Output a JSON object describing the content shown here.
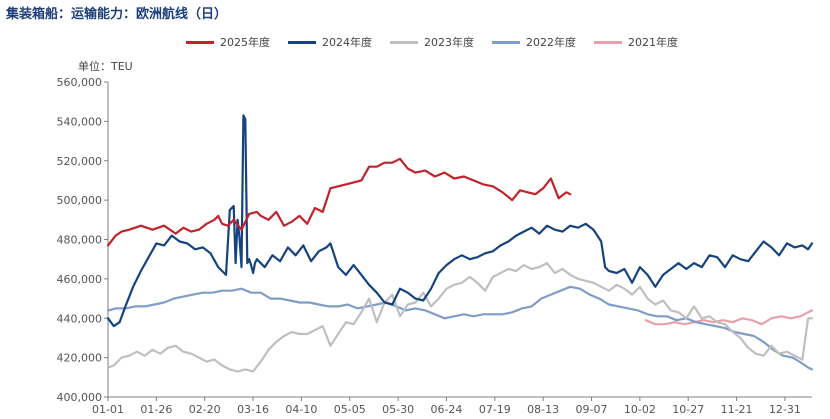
{
  "title": "集装箱船：运输能力：欧洲航线（日）",
  "unit_label": "单位：TEU",
  "chart_data": {
    "type": "line",
    "title": "集装箱船：运输能力：欧洲航线（日）",
    "ylabel": "单位：TEU",
    "xlabel": "",
    "ylim": [
      400000,
      560000
    ],
    "yticks": [
      400000,
      420000,
      440000,
      460000,
      480000,
      500000,
      520000,
      540000,
      560000
    ],
    "ytick_labels": [
      "400,000",
      "420,000",
      "440,000",
      "460,000",
      "480,000",
      "500,000",
      "520,000",
      "540,000",
      "560,000"
    ],
    "xlim": [
      1,
      365
    ],
    "xticks": [
      1,
      26,
      51,
      76,
      101,
      126,
      151,
      176,
      201,
      226,
      251,
      276,
      301,
      326,
      351
    ],
    "xtick_labels": [
      "01-01",
      "01-26",
      "02-20",
      "03-16",
      "04-10",
      "05-05",
      "05-30",
      "06-24",
      "07-19",
      "08-13",
      "09-07",
      "10-02",
      "10-27",
      "11-21",
      "12-31"
    ],
    "grid": false,
    "legend_position": "top",
    "series": [
      {
        "name": "2025年度",
        "color": "#c0232b",
        "x": [
          1,
          5,
          8,
          12,
          18,
          24,
          30,
          36,
          40,
          44,
          48,
          52,
          56,
          58,
          60,
          63,
          66,
          70,
          74,
          78,
          80,
          84,
          88,
          92,
          96,
          100,
          104,
          108,
          112,
          116,
          120,
          124,
          128,
          132,
          136,
          140,
          144,
          148,
          152,
          156,
          160,
          165,
          170,
          175,
          180,
          185,
          190,
          195,
          200,
          205,
          210,
          214,
          218,
          222,
          226,
          230,
          234,
          238,
          240
        ],
        "y": [
          477000,
          482000,
          484000,
          485000,
          487000,
          485000,
          487000,
          483000,
          486000,
          484000,
          485000,
          488000,
          490000,
          492000,
          488000,
          487000,
          490000,
          485000,
          493000,
          494000,
          492000,
          490000,
          494000,
          487000,
          489000,
          492000,
          488000,
          496000,
          494000,
          506000,
          507000,
          508000,
          509000,
          510000,
          517000,
          517000,
          519000,
          519000,
          521000,
          516000,
          514000,
          515000,
          512000,
          514000,
          511000,
          512000,
          510000,
          508000,
          507000,
          504000,
          500000,
          505000,
          504000,
          503000,
          506000,
          511000,
          501000,
          504000,
          503000
        ]
      },
      {
        "name": "2024年度",
        "color": "#16427f",
        "x": [
          1,
          4,
          7,
          10,
          14,
          18,
          22,
          26,
          30,
          34,
          38,
          42,
          46,
          50,
          54,
          58,
          62,
          64,
          66,
          67,
          68,
          69,
          70,
          71,
          72,
          73,
          74,
          75,
          76,
          77,
          78,
          82,
          86,
          90,
          94,
          98,
          102,
          106,
          110,
          114,
          116,
          120,
          124,
          128,
          132,
          136,
          140,
          144,
          148,
          152,
          156,
          160,
          164,
          168,
          172,
          176,
          180,
          184,
          188,
          192,
          196,
          200,
          204,
          208,
          212,
          216,
          220,
          224,
          228,
          232,
          236,
          240,
          244,
          248,
          252,
          256,
          258,
          260,
          264,
          268,
          272,
          276,
          280,
          284,
          288,
          292,
          296,
          300,
          304,
          308,
          312,
          316,
          320,
          324,
          328,
          332,
          336,
          340,
          344,
          348,
          352,
          356,
          360,
          363,
          365
        ],
        "y": [
          440000,
          436000,
          438000,
          446000,
          456000,
          464000,
          471000,
          478000,
          477000,
          482000,
          479000,
          478000,
          475000,
          476000,
          473000,
          466000,
          462000,
          495000,
          497000,
          468000,
          490000,
          481000,
          466000,
          543000,
          541000,
          468000,
          470000,
          467000,
          463000,
          468000,
          470000,
          466000,
          472000,
          469000,
          476000,
          472000,
          477000,
          469000,
          474000,
          476000,
          478000,
          466000,
          462000,
          467000,
          462000,
          457000,
          453000,
          448000,
          447000,
          455000,
          453000,
          450000,
          449000,
          455000,
          463000,
          467000,
          470000,
          472000,
          470000,
          471000,
          473000,
          474000,
          477000,
          479000,
          482000,
          484000,
          486000,
          483000,
          487000,
          485000,
          484000,
          487000,
          486000,
          488000,
          485000,
          479000,
          466000,
          464000,
          463000,
          465000,
          458000,
          466000,
          462000,
          456000,
          462000,
          465000,
          468000,
          465000,
          468000,
          466000,
          472000,
          471000,
          466000,
          472000,
          470000,
          469000,
          474000,
          479000,
          476000,
          472000,
          478000,
          476000,
          477000,
          475000,
          478000
        ]
      },
      {
        "name": "2023年度",
        "color": "#bfbfbf",
        "x": [
          1,
          4,
          8,
          12,
          16,
          20,
          24,
          28,
          32,
          36,
          40,
          44,
          48,
          52,
          56,
          60,
          64,
          68,
          72,
          76,
          80,
          84,
          88,
          92,
          96,
          100,
          104,
          108,
          112,
          116,
          120,
          124,
          128,
          132,
          136,
          140,
          144,
          148,
          152,
          156,
          160,
          164,
          168,
          172,
          176,
          180,
          184,
          188,
          192,
          196,
          200,
          204,
          208,
          212,
          216,
          220,
          224,
          228,
          232,
          236,
          240,
          244,
          248,
          252,
          256,
          260,
          264,
          268,
          272,
          276,
          280,
          284,
          288,
          292,
          296,
          300,
          304,
          308,
          312,
          316,
          320,
          324,
          328,
          332,
          336,
          340,
          344,
          348,
          352,
          356,
          360,
          363,
          365
        ],
        "y": [
          415000,
          416000,
          420000,
          421000,
          423000,
          421000,
          424000,
          422000,
          425000,
          426000,
          423000,
          422000,
          420000,
          418000,
          419000,
          416000,
          414000,
          413000,
          414000,
          413000,
          418000,
          424000,
          428000,
          431000,
          433000,
          432000,
          432000,
          434000,
          436000,
          426000,
          432000,
          438000,
          437000,
          443000,
          450000,
          438000,
          448000,
          452000,
          441000,
          447000,
          448000,
          453000,
          446000,
          450000,
          455000,
          457000,
          458000,
          461000,
          458000,
          454000,
          461000,
          463000,
          465000,
          464000,
          467000,
          465000,
          466000,
          468000,
          463000,
          465000,
          462000,
          460000,
          459000,
          458000,
          456000,
          454000,
          457000,
          455000,
          452000,
          456000,
          450000,
          447000,
          449000,
          444000,
          443000,
          440000,
          446000,
          440000,
          441000,
          438000,
          437000,
          433000,
          430000,
          425000,
          422000,
          421000,
          426000,
          422000,
          423000,
          421000,
          419000,
          440000,
          440000
        ]
      },
      {
        "name": "2022年度",
        "color": "#7f9dc6",
        "x": [
          1,
          5,
          10,
          15,
          20,
          25,
          30,
          35,
          40,
          45,
          50,
          55,
          60,
          65,
          70,
          75,
          80,
          85,
          90,
          95,
          100,
          105,
          110,
          115,
          120,
          125,
          130,
          135,
          140,
          145,
          150,
          155,
          160,
          165,
          170,
          175,
          180,
          185,
          190,
          195,
          200,
          205,
          210,
          215,
          220,
          225,
          230,
          235,
          240,
          245,
          250,
          255,
          260,
          265,
          270,
          275,
          280,
          285,
          290,
          295,
          300,
          305,
          310,
          315,
          320,
          325,
          330,
          335,
          340,
          345,
          350,
          355,
          360,
          363,
          365
        ],
        "y": [
          444000,
          445000,
          445000,
          446000,
          446000,
          447000,
          448000,
          450000,
          451000,
          452000,
          453000,
          453000,
          454000,
          454000,
          455000,
          453000,
          453000,
          450000,
          450000,
          449000,
          448000,
          448000,
          447000,
          446000,
          446000,
          447000,
          445000,
          446000,
          447000,
          448000,
          446000,
          444000,
          445000,
          444000,
          442000,
          440000,
          441000,
          442000,
          441000,
          442000,
          442000,
          442000,
          443000,
          445000,
          446000,
          450000,
          452000,
          454000,
          456000,
          455000,
          452000,
          450000,
          447000,
          446000,
          445000,
          444000,
          442000,
          441000,
          441000,
          439000,
          440000,
          438000,
          437000,
          436000,
          435000,
          433000,
          432000,
          431000,
          428000,
          424000,
          421000,
          420000,
          417000,
          415000,
          414000
        ]
      },
      {
        "name": "2021年度",
        "color": "#e8a0aa",
        "x": [
          279,
          284,
          289,
          294,
          299,
          304,
          309,
          314,
          319,
          324,
          329,
          334,
          339,
          344,
          349,
          354,
          359,
          363,
          365
        ],
        "y": [
          439000,
          437000,
          437000,
          438000,
          437000,
          438000,
          439000,
          438000,
          439000,
          438000,
          440000,
          439000,
          437000,
          440000,
          441000,
          440000,
          441000,
          443000,
          444000
        ]
      }
    ]
  }
}
